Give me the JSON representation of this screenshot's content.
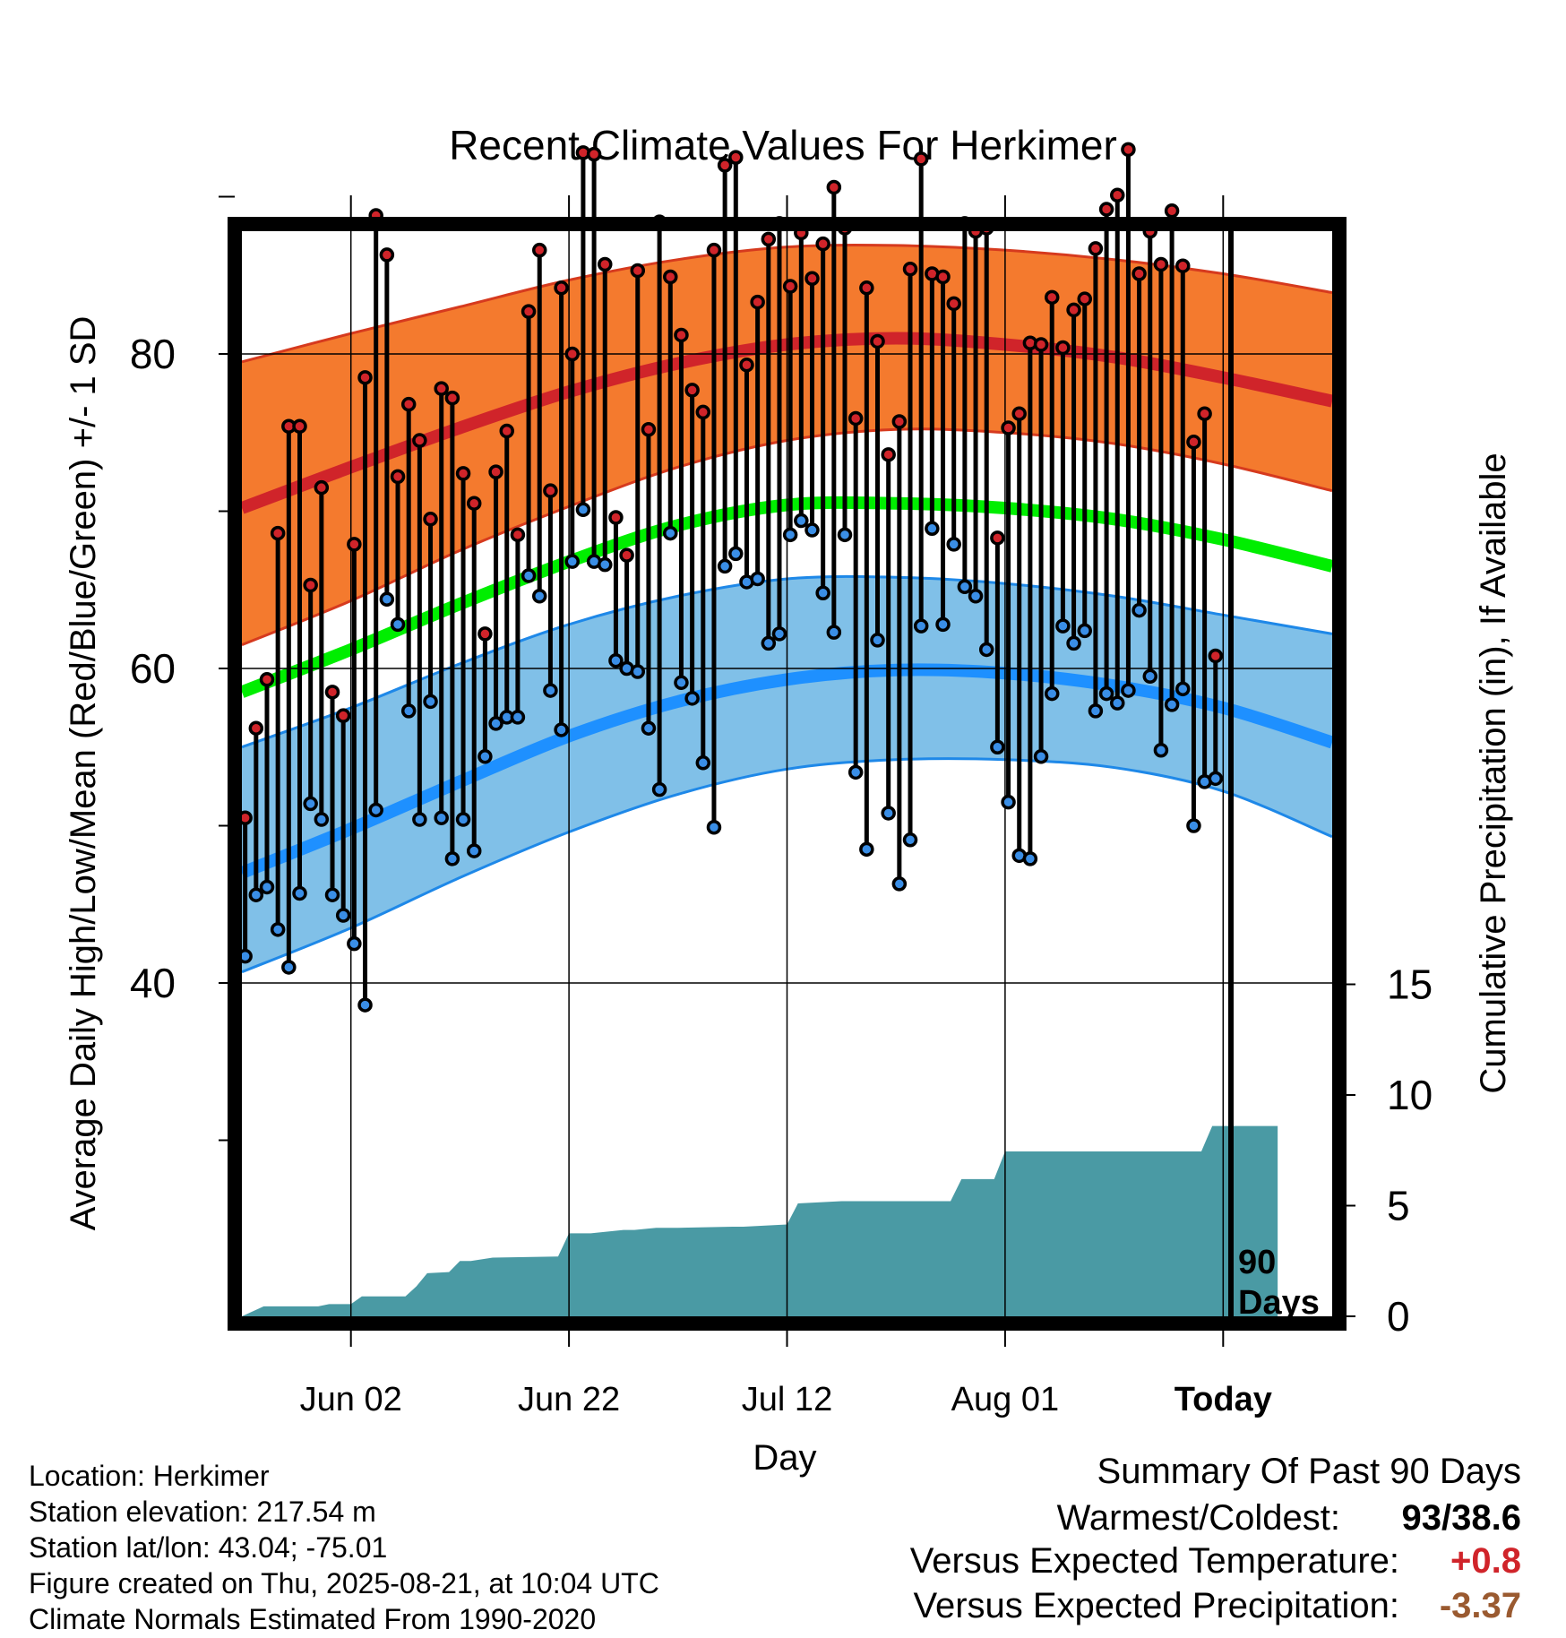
{
  "chart_data": {
    "type": "line",
    "title": "Recent Climate Values For Herkimer",
    "xlabel": "Day",
    "ylabel": "Average Daily High/Low/Mean (Red/Blue/Green) +/- 1 SD",
    "y2label": "Cumulative Precipitation (in), If Available",
    "x_tick_labels": [
      "Jun 02",
      "Jun 22",
      "Jul 12",
      "Aug 01",
      "Today"
    ],
    "y_ticks": [
      40,
      60,
      80
    ],
    "y2_ticks": [
      0,
      5,
      10,
      15
    ],
    "ylim": [
      28.5,
      98
    ],
    "y2lim": [
      0,
      15
    ],
    "grid": true,
    "today_marker_label": "90\nDays",
    "colors": {
      "high_band": "#f47a2e",
      "high_mean": "#d0242a",
      "low_band": "#80c0e8",
      "low_mean": "#1e90ff",
      "mean": "#00ee00",
      "precip": "#4a9aa4",
      "high_marker": "#d0242a",
      "low_marker": "#3a8ee6"
    },
    "normals": {
      "note": "Curves sampled every 10 days from 2025-05-23 to 2025-08-31",
      "x": [
        "2025-05-23",
        "2025-06-02",
        "2025-06-12",
        "2025-06-22",
        "2025-07-02",
        "2025-07-12",
        "2025-07-22",
        "2025-08-01",
        "2025-08-11",
        "2025-08-21",
        "2025-08-31"
      ],
      "high_mean": [
        70.2,
        72.8,
        75.3,
        77.6,
        79.4,
        80.6,
        81.0,
        80.6,
        79.8,
        78.5,
        77.0
      ],
      "high_upper": [
        79.5,
        81.3,
        83.0,
        84.7,
        86.0,
        86.8,
        86.9,
        86.6,
        86.0,
        85.1,
        83.9
      ],
      "high_lower": [
        61.5,
        64.3,
        67.5,
        70.3,
        72.8,
        74.5,
        75.2,
        75.0,
        74.3,
        73.0,
        71.3
      ],
      "mean": [
        58.5,
        61.2,
        64.1,
        66.8,
        69.1,
        70.4,
        70.5,
        70.2,
        69.5,
        68.2,
        66.5
      ],
      "low_mean": [
        47.0,
        49.8,
        52.8,
        55.7,
        57.9,
        59.3,
        59.9,
        59.7,
        58.9,
        57.5,
        55.3
      ],
      "low_upper": [
        55.0,
        57.5,
        60.3,
        62.8,
        64.6,
        65.7,
        65.8,
        65.4,
        64.6,
        63.4,
        62.2
      ],
      "low_lower": [
        40.7,
        43.5,
        46.7,
        49.6,
        52.0,
        53.6,
        54.2,
        54.2,
        53.7,
        52.2,
        49.3
      ]
    },
    "daily": {
      "start_date": "2025-05-23",
      "high": [
        50.5,
        56.2,
        59.3,
        68.6,
        75.4,
        75.4,
        65.3,
        71.5,
        58.5,
        57.0,
        67.9,
        78.5,
        88.8,
        86.3,
        72.2,
        76.8,
        74.5,
        69.5,
        77.8,
        77.2,
        72.4,
        70.5,
        62.2,
        72.5,
        75.1,
        68.5,
        82.7,
        86.6,
        71.3,
        84.2,
        80.0,
        92.8,
        92.7,
        85.7,
        69.6,
        67.2,
        85.3,
        75.2,
        88.4,
        84.9,
        81.2,
        77.7,
        76.3,
        86.6,
        92.0,
        92.5,
        79.3,
        83.3,
        87.3,
        88.3,
        84.3,
        87.7,
        84.8,
        87.0,
        90.6,
        88.0,
        75.9,
        84.2,
        80.8,
        73.6,
        75.7,
        85.4,
        92.4,
        85.1,
        84.9,
        83.2,
        88.3,
        87.8,
        88.0,
        68.3,
        75.3,
        76.2,
        80.7,
        80.6,
        83.6,
        80.4,
        82.8,
        83.5,
        86.7,
        89.2,
        90.1,
        93.0,
        85.1,
        87.8,
        85.7,
        89.1,
        85.6,
        74.4,
        76.2,
        60.8
      ],
      "low": [
        41.7,
        45.6,
        46.1,
        43.4,
        41.0,
        45.7,
        51.4,
        50.4,
        45.6,
        44.3,
        42.5,
        38.6,
        51.0,
        64.4,
        62.8,
        57.3,
        50.4,
        57.9,
        50.5,
        47.9,
        50.4,
        48.4,
        54.4,
        56.5,
        56.9,
        56.9,
        65.9,
        64.6,
        58.6,
        56.1,
        66.8,
        70.1,
        66.8,
        66.6,
        60.5,
        60.0,
        59.8,
        56.2,
        52.3,
        68.6,
        59.1,
        58.1,
        54.0,
        49.9,
        66.5,
        67.3,
        65.5,
        65.7,
        61.6,
        62.2,
        68.5,
        69.4,
        68.8,
        64.8,
        62.3,
        68.5,
        53.4,
        48.5,
        61.8,
        50.8,
        46.3,
        49.1,
        62.7,
        68.9,
        62.8,
        67.9,
        65.2,
        64.6,
        61.2,
        55.0,
        51.5,
        48.1,
        47.9,
        54.4,
        58.4,
        62.7,
        61.6,
        62.4,
        57.3,
        58.4,
        57.8,
        58.6,
        63.7,
        59.5,
        54.8,
        57.7,
        58.7,
        50.0,
        52.8,
        53.0
      ]
    },
    "precip": {
      "x_day": [
        0,
        2,
        7,
        8,
        10,
        11,
        13,
        15,
        16,
        17,
        19,
        20,
        21,
        23,
        29,
        30,
        31,
        32,
        35,
        36,
        38,
        40,
        45,
        46,
        50,
        51,
        53,
        55,
        60,
        61,
        64,
        65,
        66,
        67,
        68,
        69,
        70,
        71,
        74,
        76,
        79,
        86,
        88,
        89,
        90,
        95
      ],
      "cumulative": [
        0.0,
        0.45,
        0.45,
        0.55,
        0.55,
        0.9,
        0.9,
        0.9,
        1.35,
        1.95,
        2.0,
        2.5,
        2.5,
        2.65,
        2.7,
        3.75,
        3.75,
        3.75,
        3.9,
        3.9,
        4.0,
        4.0,
        4.05,
        4.05,
        4.15,
        5.1,
        5.15,
        5.2,
        5.2,
        5.2,
        5.2,
        5.2,
        6.2,
        6.2,
        6.2,
        6.2,
        7.45,
        7.45,
        7.45,
        7.45,
        7.45,
        7.45,
        7.45,
        8.6,
        8.6,
        8.6
      ]
    }
  },
  "meta": {
    "location": "Location: Herkimer",
    "elevation": "Station elevation: 217.54 m",
    "latlon": "Station lat/lon: 43.04; -75.01",
    "created": "Figure created on Thu, 2025-08-21, at 10:04 UTC",
    "normals": "Climate Normals Estimated From 1990-2020"
  },
  "summary": {
    "heading": "Summary Of Past 90 Days",
    "warm_cold_label": "Warmest/Coldest:",
    "warm_cold_value": "93/38.6",
    "temp_label": "Versus Expected Temperature:",
    "temp_value": "+0.8",
    "temp_color": "#d0242a",
    "precip_label": "Versus Expected Precipitation:",
    "precip_value": "-3.37",
    "precip_color": "#9a5a30"
  }
}
